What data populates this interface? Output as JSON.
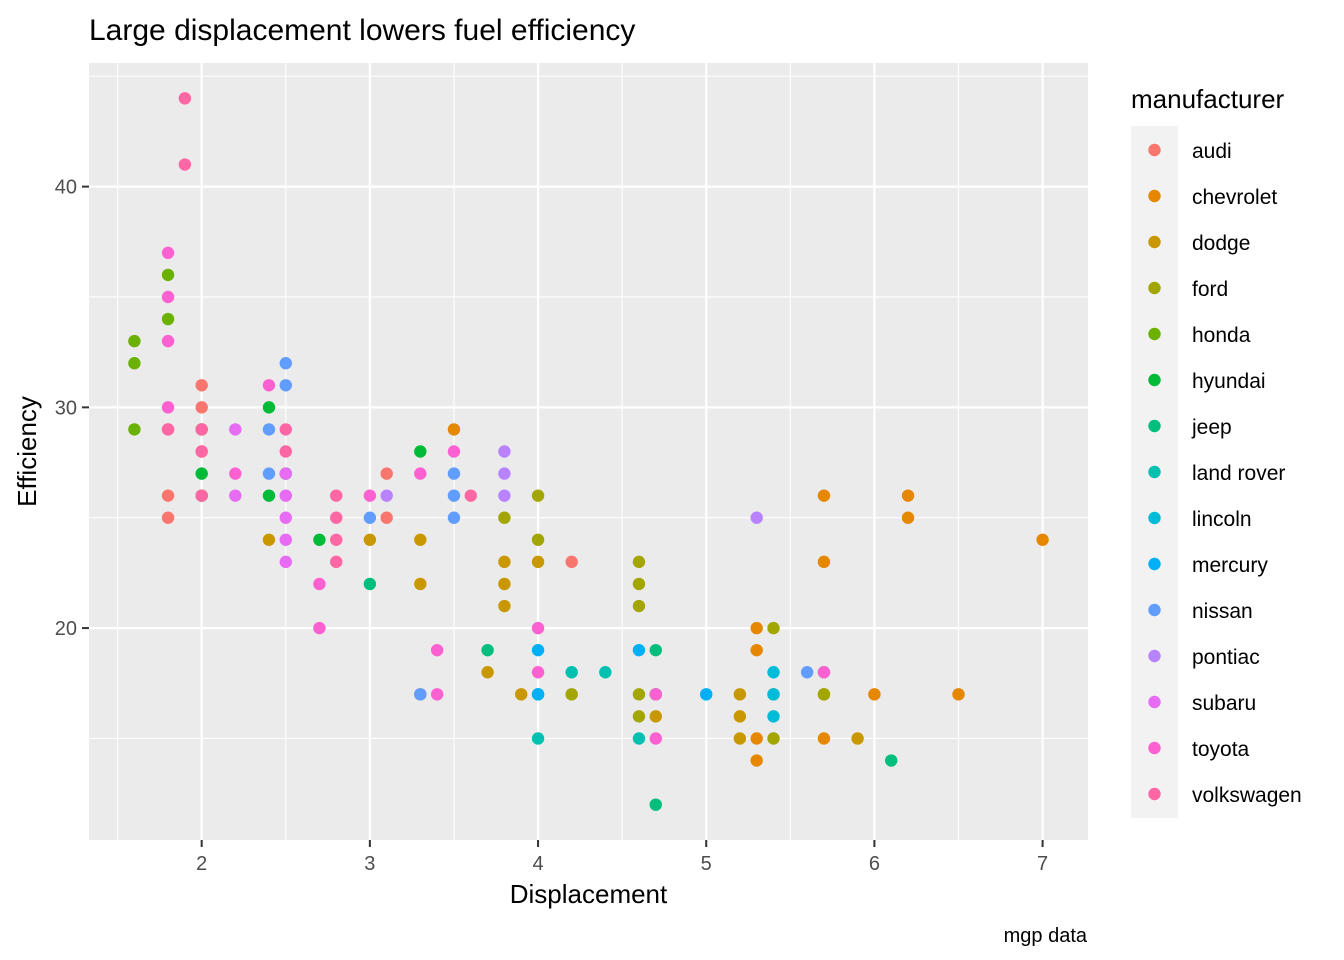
{
  "chart_data": {
    "type": "scatter",
    "title": "Large displacement lowers fuel efficiency",
    "xlabel": "Displacement",
    "ylabel": "Efficiency",
    "caption": "mgp data",
    "xlim": [
      1.33,
      7.27
    ],
    "ylim": [
      10.4,
      45.6
    ],
    "x_ticks": [
      2,
      3,
      4,
      5,
      6,
      7
    ],
    "y_ticks": [
      20,
      30,
      40
    ],
    "grid": true,
    "legend": {
      "title": "manufacturer",
      "position": "right",
      "entries": [
        "audi",
        "chevrolet",
        "dodge",
        "ford",
        "honda",
        "hyundai",
        "jeep",
        "land rover",
        "lincoln",
        "mercury",
        "nissan",
        "pontiac",
        "subaru",
        "toyota",
        "volkswagen"
      ]
    },
    "colors": {
      "audi": "#F8766D",
      "chevrolet": "#E58700",
      "dodge": "#C99800",
      "ford": "#A3A500",
      "honda": "#6BB100",
      "hyundai": "#00BA38",
      "jeep": "#00BF7D",
      "land rover": "#00C0AF",
      "lincoln": "#00BCD8",
      "mercury": "#00B0F6",
      "nissan": "#619CFF",
      "pontiac": "#B983FF",
      "subaru": "#E76BF3",
      "toyota": "#FD61D1",
      "volkswagen": "#FF67A4"
    },
    "series": [
      {
        "name": "audi",
        "points": [
          [
            1.8,
            29
          ],
          [
            1.8,
            26
          ],
          [
            1.8,
            25
          ],
          [
            2.0,
            31
          ],
          [
            2.0,
            30
          ],
          [
            2.0,
            29
          ],
          [
            2.0,
            28
          ],
          [
            2.0,
            26
          ],
          [
            3.1,
            27
          ],
          [
            3.1,
            25
          ],
          [
            4.2,
            23
          ]
        ]
      },
      {
        "name": "chevrolet",
        "points": [
          [
            3.5,
            29
          ],
          [
            5.3,
            20
          ],
          [
            5.3,
            19
          ],
          [
            5.3,
            15
          ],
          [
            5.3,
            14
          ],
          [
            5.7,
            26
          ],
          [
            5.7,
            23
          ],
          [
            5.7,
            15
          ],
          [
            6.0,
            17
          ],
          [
            6.2,
            26
          ],
          [
            6.2,
            25
          ],
          [
            6.5,
            17
          ],
          [
            7.0,
            24
          ]
        ]
      },
      {
        "name": "dodge",
        "points": [
          [
            2.4,
            24
          ],
          [
            3.0,
            24
          ],
          [
            3.3,
            24
          ],
          [
            3.3,
            22
          ],
          [
            3.3,
            17
          ],
          [
            3.7,
            18
          ],
          [
            3.8,
            23
          ],
          [
            3.8,
            22
          ],
          [
            3.8,
            21
          ],
          [
            3.9,
            17
          ],
          [
            4.0,
            23
          ],
          [
            4.7,
            17
          ],
          [
            4.7,
            16
          ],
          [
            5.2,
            17
          ],
          [
            5.2,
            16
          ],
          [
            5.2,
            15
          ],
          [
            5.7,
            17
          ],
          [
            5.9,
            15
          ]
        ]
      },
      {
        "name": "ford",
        "points": [
          [
            3.8,
            25
          ],
          [
            4.0,
            26
          ],
          [
            4.0,
            24
          ],
          [
            4.2,
            17
          ],
          [
            4.6,
            23
          ],
          [
            4.6,
            22
          ],
          [
            4.6,
            21
          ],
          [
            4.6,
            17
          ],
          [
            4.6,
            16
          ],
          [
            5.4,
            20
          ],
          [
            5.4,
            17
          ],
          [
            5.4,
            15
          ],
          [
            5.7,
            17
          ]
        ]
      },
      {
        "name": "honda",
        "points": [
          [
            1.6,
            33
          ],
          [
            1.6,
            32
          ],
          [
            1.6,
            29
          ],
          [
            1.8,
            36
          ],
          [
            1.8,
            34
          ],
          [
            2.0,
            29
          ]
        ]
      },
      {
        "name": "hyundai",
        "points": [
          [
            2.0,
            27
          ],
          [
            2.0,
            26
          ],
          [
            2.4,
            30
          ],
          [
            2.4,
            26
          ],
          [
            2.5,
            27
          ],
          [
            2.7,
            24
          ],
          [
            3.3,
            28
          ]
        ]
      },
      {
        "name": "jeep",
        "points": [
          [
            3.0,
            22
          ],
          [
            3.7,
            19
          ],
          [
            4.0,
            17
          ],
          [
            4.7,
            19
          ],
          [
            4.7,
            17
          ],
          [
            4.7,
            12
          ],
          [
            5.7,
            18
          ],
          [
            6.1,
            14
          ]
        ]
      },
      {
        "name": "land rover",
        "points": [
          [
            4.0,
            15
          ],
          [
            4.2,
            18
          ],
          [
            4.4,
            18
          ],
          [
            4.6,
            15
          ]
        ]
      },
      {
        "name": "lincoln",
        "points": [
          [
            5.4,
            18
          ],
          [
            5.4,
            17
          ],
          [
            5.4,
            16
          ]
        ]
      },
      {
        "name": "mercury",
        "points": [
          [
            4.0,
            19
          ],
          [
            4.0,
            17
          ],
          [
            4.6,
            19
          ],
          [
            5.0,
            17
          ]
        ]
      },
      {
        "name": "nissan",
        "points": [
          [
            2.4,
            29
          ],
          [
            2.4,
            27
          ],
          [
            2.5,
            32
          ],
          [
            2.5,
            31
          ],
          [
            3.0,
            25
          ],
          [
            3.3,
            17
          ],
          [
            3.5,
            27
          ],
          [
            3.5,
            26
          ],
          [
            3.5,
            25
          ],
          [
            5.6,
            18
          ]
        ]
      },
      {
        "name": "pontiac",
        "points": [
          [
            3.1,
            26
          ],
          [
            3.8,
            28
          ],
          [
            3.8,
            27
          ],
          [
            3.8,
            26
          ],
          [
            5.3,
            25
          ]
        ]
      },
      {
        "name": "subaru",
        "points": [
          [
            2.2,
            26
          ],
          [
            2.5,
            27
          ],
          [
            2.5,
            26
          ],
          [
            2.5,
            25
          ],
          [
            2.5,
            24
          ],
          [
            2.5,
            23
          ],
          [
            2.2,
            29
          ]
        ]
      },
      {
        "name": "toyota",
        "points": [
          [
            1.8,
            37
          ],
          [
            1.8,
            35
          ],
          [
            1.8,
            33
          ],
          [
            1.8,
            30
          ],
          [
            2.2,
            27
          ],
          [
            2.4,
            31
          ],
          [
            2.7,
            22
          ],
          [
            2.7,
            20
          ],
          [
            3.0,
            26
          ],
          [
            3.3,
            27
          ],
          [
            3.4,
            19
          ],
          [
            3.4,
            17
          ],
          [
            3.5,
            28
          ],
          [
            4.0,
            20
          ],
          [
            4.0,
            18
          ],
          [
            4.7,
            17
          ],
          [
            4.7,
            15
          ],
          [
            5.7,
            18
          ]
        ]
      },
      {
        "name": "volkswagen",
        "points": [
          [
            1.8,
            29
          ],
          [
            1.9,
            44
          ],
          [
            1.9,
            41
          ],
          [
            2.0,
            29
          ],
          [
            2.0,
            28
          ],
          [
            2.0,
            26
          ],
          [
            2.5,
            29
          ],
          [
            2.5,
            28
          ],
          [
            2.8,
            26
          ],
          [
            2.8,
            25
          ],
          [
            2.8,
            24
          ],
          [
            2.8,
            23
          ],
          [
            3.6,
            26
          ]
        ]
      }
    ]
  }
}
